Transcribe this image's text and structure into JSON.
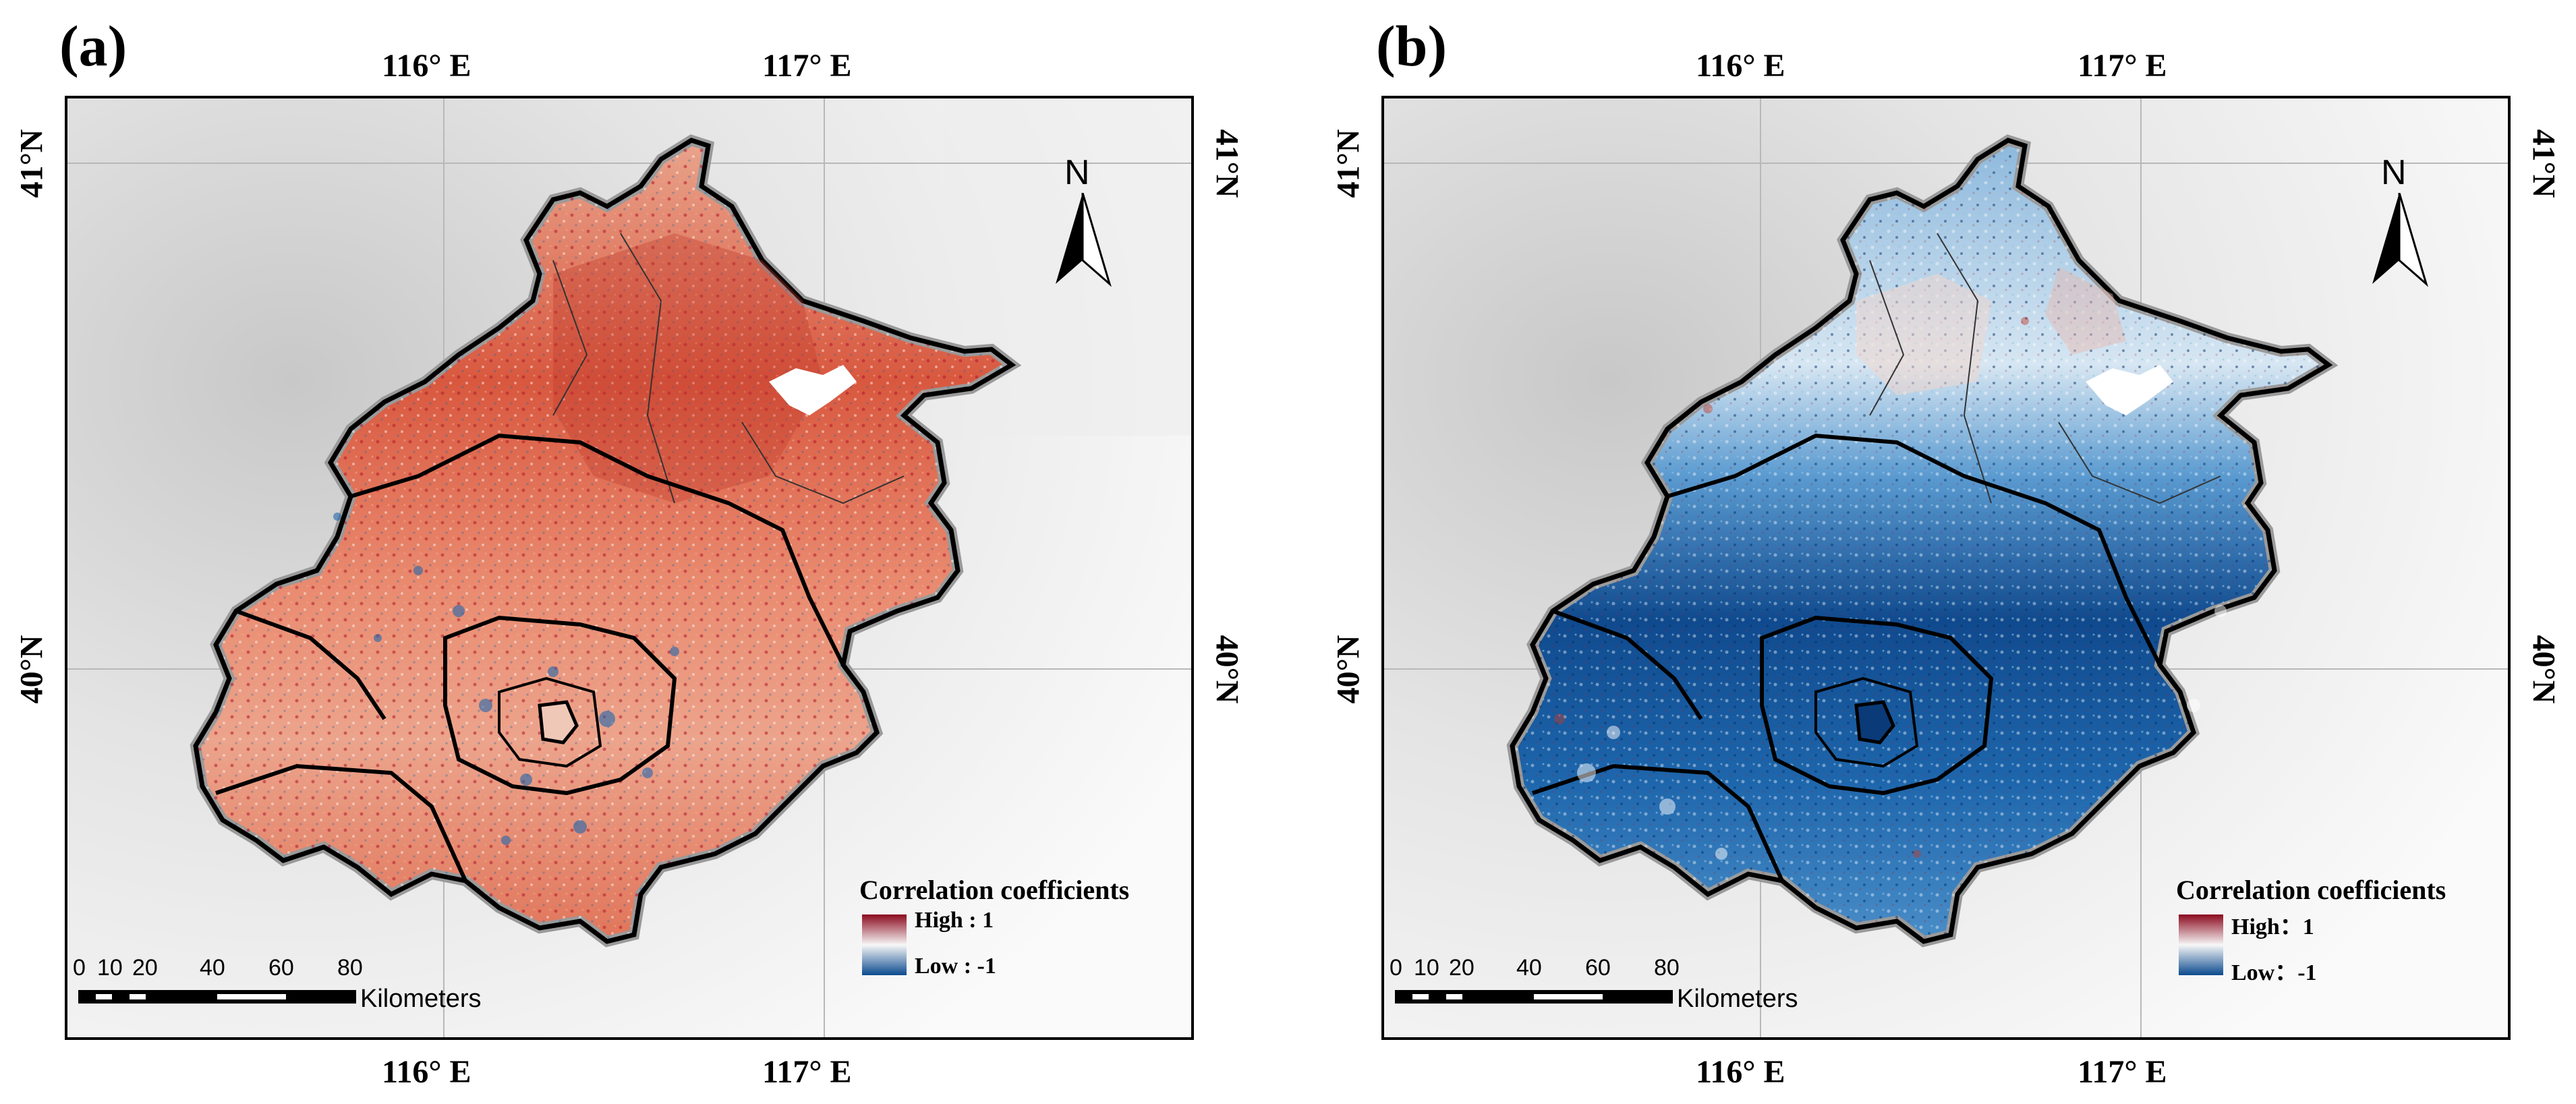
{
  "panels": [
    {
      "label": "(a)",
      "legend": {
        "title": "Correlation coefficients",
        "high": "High : 1",
        "low": "Low : -1"
      },
      "pattern": "positive"
    },
    {
      "label": "(b)",
      "legend": {
        "title": "Correlation coefficients",
        "high": "High：1",
        "low": "Low：-1"
      },
      "pattern": "negative"
    }
  ],
  "graticule": {
    "lon_labels": [
      "116° E",
      "117° E"
    ],
    "lat_labels": [
      "41°N",
      "40°N"
    ]
  },
  "north_arrow": {
    "letter": "N"
  },
  "scale_bar": {
    "ticks": [
      "0",
      "10",
      "20",
      "40",
      "60",
      "80"
    ],
    "unit": "Kilometers"
  },
  "colors": {
    "high": "#8b0a1e",
    "mid": "#f7f7f7",
    "low": "#0b4a8e",
    "border": "#000000",
    "terrain": "#d9d9d9"
  }
}
